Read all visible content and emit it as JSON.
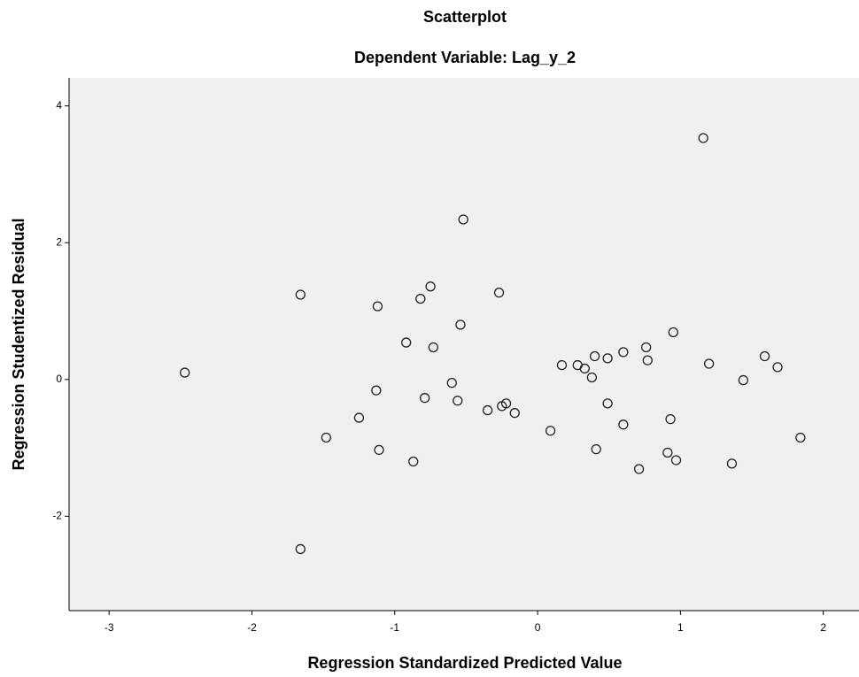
{
  "chart_data": {
    "type": "scatter",
    "title": "Scatterplot",
    "subtitle": "Dependent Variable: Lag_y_2",
    "x_label": "Regression Standardized Predicted Value",
    "y_label": "Regression Studentized Residual",
    "xlim": [
      -3.28,
      2.25
    ],
    "ylim": [
      -3.38,
      4.41
    ],
    "xticks": [
      -3,
      -2,
      -1,
      0,
      1,
      2
    ],
    "yticks": [
      -2,
      0,
      2,
      4
    ],
    "color": "#222222",
    "background": "#f0f0f0",
    "x": [
      -2.47,
      -1.66,
      -1.66,
      -1.48,
      -1.25,
      -1.12,
      -1.13,
      -1.11,
      -0.92,
      -0.87,
      -0.82,
      -0.79,
      -0.75,
      -0.73,
      -0.6,
      -0.56,
      -0.54,
      -0.52,
      -0.35,
      -0.27,
      -0.25,
      -0.22,
      -0.16,
      0.09,
      0.17,
      0.28,
      0.33,
      0.38,
      0.4,
      0.41,
      0.49,
      0.49,
      0.6,
      0.6,
      0.71,
      0.76,
      0.77,
      0.91,
      0.93,
      0.95,
      0.97,
      1.16,
      1.2,
      1.36,
      1.44,
      1.59,
      1.68,
      1.84
    ],
    "values": [
      0.1,
      1.24,
      -2.48,
      -0.85,
      -0.56,
      1.07,
      -0.16,
      -1.03,
      0.54,
      -1.2,
      1.18,
      -0.27,
      1.36,
      0.47,
      -0.05,
      -0.31,
      0.8,
      2.34,
      -0.45,
      1.27,
      -0.39,
      -0.35,
      -0.49,
      -0.75,
      0.21,
      0.21,
      0.16,
      0.03,
      0.34,
      -1.02,
      0.31,
      -0.35,
      -0.66,
      0.4,
      -1.31,
      0.47,
      0.28,
      -1.07,
      -0.58,
      0.69,
      -1.18,
      3.53,
      0.23,
      -1.23,
      -0.01,
      0.34,
      0.18,
      -0.85
    ]
  }
}
